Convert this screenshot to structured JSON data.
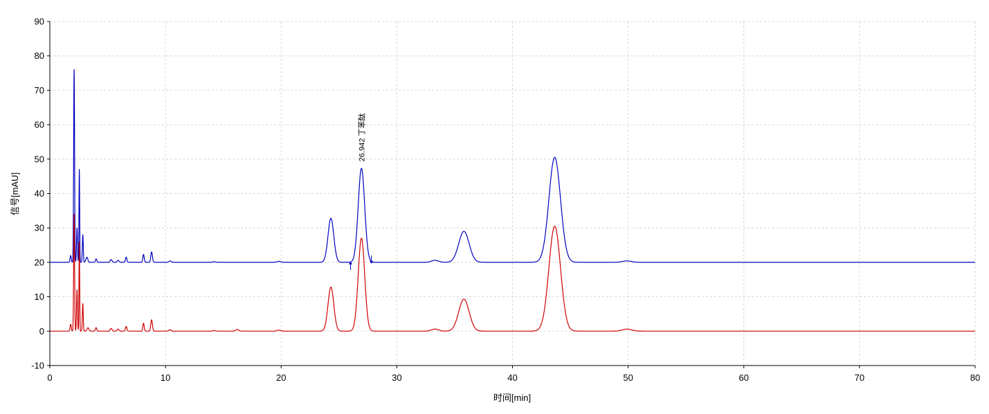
{
  "chart_data": {
    "type": "line",
    "title": "",
    "xlabel": "时间[min]",
    "ylabel": "信号[mAU]",
    "xlim": [
      0,
      80
    ],
    "ylim": [
      -10,
      90
    ],
    "xticks": [
      0,
      10,
      20,
      30,
      40,
      50,
      60,
      70,
      80
    ],
    "yticks": [
      -10,
      0,
      10,
      20,
      30,
      40,
      50,
      60,
      70,
      80,
      90
    ],
    "grid": true,
    "legend": "none",
    "annotations": [
      {
        "text": "26.942  丁苯酞",
        "x": 26.942,
        "y": 47.3,
        "series": 0
      }
    ],
    "integration_markers": [
      {
        "x": 26.0,
        "y": 19.2,
        "series": 0
      },
      {
        "x": 27.8,
        "y": 20.2,
        "series": 0
      }
    ],
    "series": [
      {
        "color": "#0000c0",
        "baseline": 20,
        "peaks": [
          [
            1.8,
            0.05,
            2.0
          ],
          [
            2.1,
            0.04,
            56.0
          ],
          [
            2.35,
            0.04,
            10.0
          ],
          [
            2.55,
            0.03,
            27.0
          ],
          [
            2.85,
            0.04,
            8.0
          ],
          [
            3.2,
            0.08,
            1.5
          ],
          [
            4.0,
            0.06,
            1.0
          ],
          [
            5.3,
            0.08,
            0.8
          ],
          [
            5.9,
            0.08,
            0.6
          ],
          [
            6.6,
            0.06,
            1.5
          ],
          [
            8.1,
            0.06,
            2.3
          ],
          [
            8.8,
            0.07,
            3.0
          ],
          [
            10.4,
            0.1,
            0.4
          ],
          [
            14.2,
            0.1,
            0.2
          ],
          [
            19.8,
            0.15,
            0.3
          ],
          [
            24.3,
            0.25,
            12.8
          ],
          [
            26.942,
            0.28,
            27.3
          ],
          [
            33.3,
            0.3,
            0.6
          ],
          [
            35.8,
            0.45,
            9.0
          ],
          [
            43.65,
            0.5,
            30.5
          ],
          [
            49.9,
            0.4,
            0.4
          ]
        ]
      },
      {
        "color": "#d00000",
        "baseline": 0,
        "peaks": [
          [
            1.8,
            0.05,
            2.0
          ],
          [
            2.1,
            0.04,
            34.0
          ],
          [
            2.35,
            0.04,
            12.0
          ],
          [
            2.55,
            0.03,
            26.0
          ],
          [
            2.85,
            0.04,
            8.0
          ],
          [
            3.3,
            0.08,
            1.0
          ],
          [
            4.0,
            0.06,
            1.0
          ],
          [
            5.3,
            0.08,
            0.8
          ],
          [
            5.9,
            0.08,
            0.6
          ],
          [
            6.6,
            0.06,
            1.4
          ],
          [
            8.1,
            0.06,
            2.3
          ],
          [
            8.8,
            0.07,
            3.3
          ],
          [
            10.4,
            0.1,
            0.4
          ],
          [
            14.2,
            0.1,
            0.2
          ],
          [
            16.2,
            0.12,
            0.5
          ],
          [
            19.8,
            0.15,
            0.3
          ],
          [
            24.3,
            0.25,
            12.8
          ],
          [
            26.942,
            0.28,
            27.0
          ],
          [
            33.3,
            0.3,
            0.6
          ],
          [
            35.8,
            0.45,
            9.3
          ],
          [
            43.65,
            0.5,
            30.5
          ],
          [
            49.9,
            0.4,
            0.6
          ]
        ]
      }
    ]
  }
}
